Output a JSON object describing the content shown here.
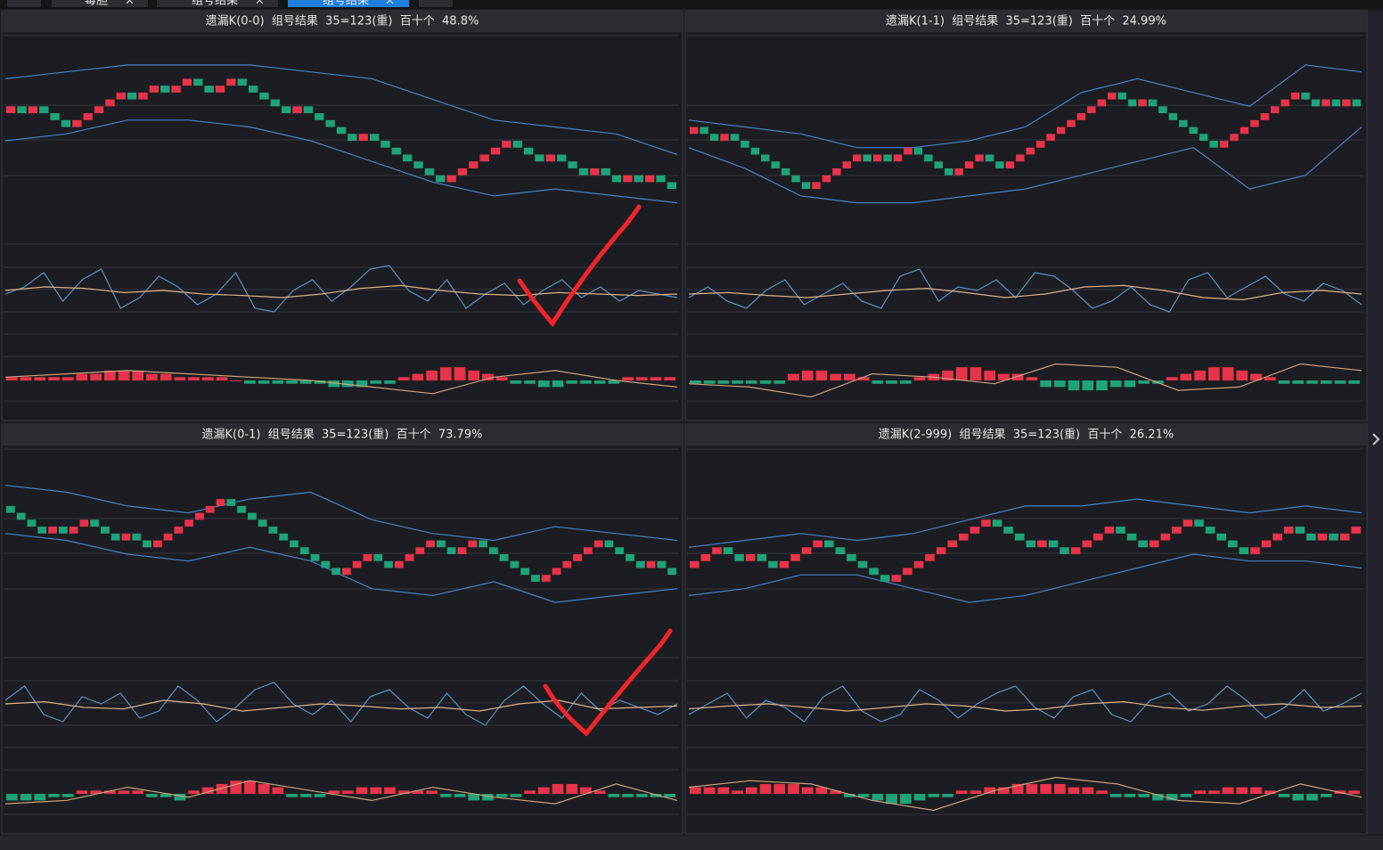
{
  "tabs": [
    "毒胆",
    "组号结果",
    "组号结果"
  ],
  "scales": {
    "main_ylim": [
      0,
      30
    ],
    "osc_ylim": [
      0,
      100
    ],
    "macd_ylim": [
      -10,
      10
    ]
  },
  "panels": [
    {
      "title": "遗漏K(0-0)  组号结果  35=123(重)  百十个  48.8%",
      "bricks": [
        19,
        20,
        19,
        20,
        19,
        18,
        17,
        18,
        19,
        20,
        21,
        22,
        21,
        22,
        23,
        22,
        23,
        24,
        23,
        22,
        23,
        24,
        23,
        22,
        21,
        20,
        19,
        20,
        19,
        18,
        17,
        16,
        15,
        16,
        15,
        14,
        13,
        12,
        11,
        10,
        9,
        10,
        11,
        12,
        13,
        14,
        15,
        14,
        13,
        12,
        13,
        12,
        11,
        10,
        11,
        10,
        9,
        10,
        9,
        10,
        9,
        8
      ],
      "upper": [
        24,
        25,
        26,
        26,
        26,
        25,
        24,
        21,
        18,
        17,
        16,
        13
      ],
      "lower": [
        15,
        16,
        18,
        18,
        17,
        15,
        12,
        9,
        7,
        8,
        7,
        6
      ],
      "k": [
        50,
        60,
        80,
        40,
        70,
        85,
        30,
        45,
        75,
        60,
        35,
        50,
        80,
        30,
        25,
        55,
        70,
        40,
        60,
        85,
        90,
        55,
        40,
        70,
        30,
        50,
        65,
        35,
        55,
        70,
        45,
        60,
        40,
        55,
        50,
        45
      ],
      "d": [
        55,
        60,
        58,
        52,
        55,
        50,
        48,
        45,
        50,
        58,
        62,
        55,
        50,
        48,
        52,
        50,
        48,
        50
      ],
      "hist": [
        1,
        1,
        1,
        1,
        1,
        2,
        2,
        3,
        3,
        3,
        2,
        2,
        1,
        1,
        1,
        1,
        0,
        -1,
        -1,
        -1,
        -1,
        -1,
        -1,
        -2,
        -2,
        -2,
        -1,
        -1,
        1,
        2,
        3,
        4,
        4,
        3,
        2,
        1,
        -1,
        -1,
        -2,
        -2,
        -1,
        -1,
        -1,
        -1,
        1,
        1,
        1,
        1
      ],
      "dea": [
        1,
        2,
        3,
        2,
        1,
        0,
        -2,
        -4,
        1,
        3,
        0,
        -2
      ]
    },
    {
      "title": "遗漏K(1-1)  组号结果  35=123(重)  百十个  24.99%",
      "bricks": [
        16,
        17,
        16,
        15,
        16,
        15,
        14,
        13,
        12,
        11,
        10,
        9,
        8,
        9,
        10,
        11,
        12,
        13,
        12,
        13,
        12,
        13,
        14,
        13,
        12,
        11,
        10,
        11,
        12,
        13,
        12,
        11,
        12,
        13,
        14,
        15,
        16,
        17,
        18,
        19,
        20,
        21,
        22,
        21,
        20,
        21,
        20,
        19,
        18,
        17,
        16,
        15,
        14,
        15,
        16,
        17,
        18,
        19,
        20,
        21,
        22,
        21,
        20,
        21,
        20,
        21,
        20
      ],
      "upper": [
        18,
        17,
        16,
        14,
        14,
        15,
        17,
        22,
        24,
        22,
        20,
        26,
        25
      ],
      "lower": [
        14,
        11,
        7,
        6,
        6,
        7,
        8,
        10,
        12,
        14,
        8,
        10,
        17
      ],
      "k": [
        45,
        60,
        40,
        30,
        55,
        70,
        35,
        50,
        65,
        40,
        30,
        75,
        85,
        40,
        60,
        55,
        70,
        45,
        80,
        75,
        55,
        30,
        40,
        60,
        35,
        25,
        70,
        80,
        45,
        60,
        75,
        50,
        40,
        65,
        55,
        35
      ],
      "d": [
        50,
        52,
        48,
        45,
        50,
        55,
        58,
        52,
        45,
        50,
        60,
        62,
        55,
        45,
        42,
        52,
        55,
        50
      ],
      "hist": [
        -1,
        -1,
        -1,
        -1,
        -1,
        -1,
        -1,
        2,
        3,
        3,
        2,
        2,
        1,
        -1,
        -1,
        -1,
        1,
        2,
        3,
        4,
        4,
        3,
        2,
        2,
        1,
        -2,
        -2,
        -3,
        -3,
        -3,
        -2,
        -2,
        -1,
        -1,
        1,
        2,
        3,
        4,
        4,
        3,
        2,
        1,
        -1,
        -1,
        -1,
        -1,
        -1,
        -1
      ],
      "dea": [
        -1,
        -2,
        -5,
        2,
        1,
        -1,
        5,
        4,
        -3,
        -2,
        5,
        3
      ]
    },
    {
      "title": "遗漏K(0-1)  组号结果  35=123(重)  百十个  73.79%",
      "bricks": [
        22,
        21,
        20,
        19,
        18,
        19,
        18,
        19,
        20,
        19,
        18,
        17,
        18,
        17,
        16,
        17,
        18,
        19,
        20,
        21,
        22,
        23,
        22,
        21,
        20,
        19,
        18,
        17,
        16,
        15,
        14,
        13,
        12,
        13,
        14,
        15,
        14,
        13,
        14,
        15,
        16,
        17,
        16,
        15,
        16,
        17,
        16,
        15,
        14,
        13,
        12,
        11,
        12,
        13,
        14,
        15,
        16,
        17,
        16,
        15,
        14,
        13,
        14,
        13,
        12
      ],
      "upper": [
        25,
        24,
        22,
        21,
        23,
        24,
        20,
        18,
        17,
        19,
        18,
        17
      ],
      "lower": [
        18,
        17,
        15,
        14,
        16,
        14,
        10,
        9,
        11,
        8,
        9,
        10
      ],
      "k": [
        60,
        80,
        40,
        30,
        65,
        55,
        70,
        35,
        45,
        80,
        60,
        30,
        50,
        75,
        85,
        55,
        40,
        60,
        30,
        65,
        75,
        50,
        35,
        70,
        40,
        25,
        60,
        80,
        55,
        35,
        70,
        45,
        60,
        50,
        40,
        55
      ],
      "d": [
        55,
        58,
        50,
        48,
        60,
        55,
        45,
        50,
        55,
        52,
        48,
        50,
        45,
        55,
        60,
        48,
        50,
        52
      ],
      "hist": [
        -2,
        -2,
        -2,
        -1,
        -1,
        1,
        1,
        1,
        1,
        1,
        -1,
        -1,
        -2,
        1,
        2,
        3,
        4,
        4,
        3,
        2,
        -1,
        -1,
        -1,
        1,
        1,
        2,
        2,
        2,
        1,
        1,
        1,
        -1,
        -1,
        -2,
        -2,
        -1,
        -1,
        1,
        2,
        3,
        3,
        2,
        1,
        -1,
        -1,
        -1,
        -1,
        -1
      ],
      "dea": [
        -3,
        -2,
        2,
        -1,
        4,
        1,
        -2,
        2,
        -1,
        -3,
        3,
        -2
      ]
    },
    {
      "title": "遗漏K(2-999)  组号结果  35=123(重)  百十个  26.21%",
      "bricks": [
        13,
        14,
        15,
        16,
        15,
        14,
        15,
        14,
        13,
        14,
        15,
        16,
        17,
        16,
        15,
        14,
        13,
        12,
        11,
        12,
        13,
        14,
        15,
        16,
        17,
        18,
        19,
        20,
        19,
        18,
        17,
        16,
        17,
        16,
        15,
        16,
        17,
        18,
        19,
        18,
        17,
        16,
        17,
        18,
        19,
        20,
        19,
        18,
        17,
        16,
        15,
        16,
        17,
        18,
        19,
        18,
        17,
        18,
        17,
        18,
        19
      ],
      "upper": [
        16,
        17,
        18,
        17,
        18,
        20,
        22,
        22,
        23,
        22,
        21,
        22,
        21
      ],
      "lower": [
        9,
        10,
        12,
        12,
        10,
        8,
        9,
        11,
        13,
        15,
        14,
        14,
        13
      ],
      "k": [
        40,
        55,
        70,
        35,
        60,
        50,
        30,
        65,
        80,
        45,
        30,
        40,
        75,
        60,
        35,
        55,
        70,
        80,
        50,
        35,
        65,
        75,
        40,
        30,
        60,
        70,
        45,
        55,
        80,
        60,
        35,
        50,
        75,
        45,
        55,
        70
      ],
      "d": [
        48,
        52,
        55,
        50,
        45,
        50,
        55,
        52,
        45,
        48,
        55,
        58,
        50,
        46,
        52,
        55,
        50,
        52
      ],
      "hist": [
        2,
        2,
        2,
        1,
        2,
        3,
        3,
        3,
        2,
        2,
        1,
        -1,
        -1,
        -2,
        -3,
        -3,
        -2,
        -1,
        -1,
        1,
        1,
        2,
        2,
        3,
        3,
        3,
        3,
        2,
        2,
        1,
        -1,
        -1,
        -1,
        -2,
        -2,
        -1,
        1,
        1,
        2,
        2,
        2,
        1,
        -1,
        -2,
        -2,
        -1,
        1,
        1
      ],
      "dea": [
        2,
        4,
        3,
        -2,
        -5,
        1,
        5,
        3,
        -2,
        -3,
        3,
        -1
      ]
    }
  ]
}
